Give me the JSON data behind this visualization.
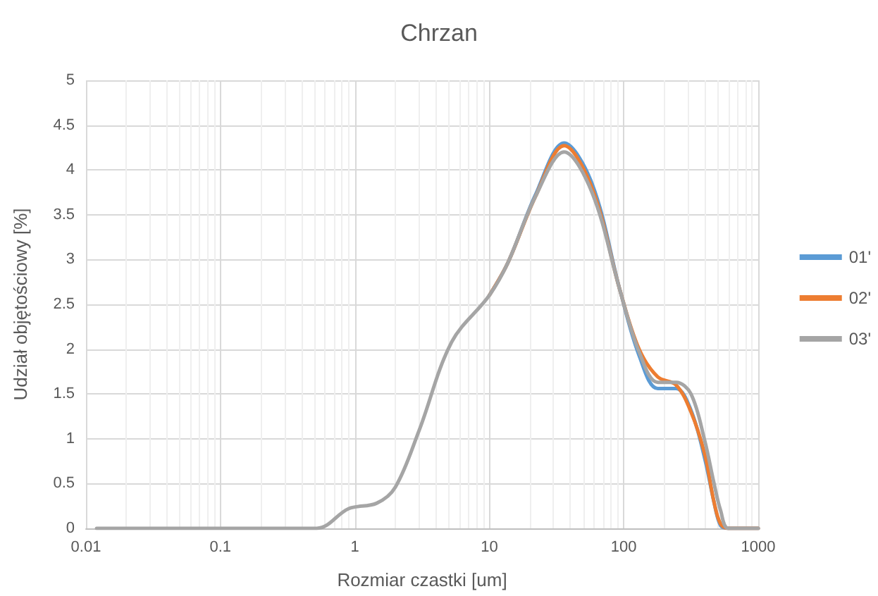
{
  "chart_data": {
    "type": "line",
    "title": "Chrzan",
    "xlabel": "Rozmiar czastki [um]",
    "ylabel": "Udział objętościowy [%]",
    "x": [
      0.012,
      0.52,
      0.9,
      1.45,
      2,
      3,
      5.25,
      10,
      13.8,
      22,
      36,
      58,
      94,
      130,
      179,
      245,
      316,
      400,
      468,
      525,
      600,
      1000
    ],
    "series": [
      {
        "name": "01'",
        "color": "#5b9bd5",
        "values": [
          null,
          null,
          null,
          null,
          null,
          null,
          null,
          2.6,
          2.97,
          3.72,
          4.3,
          3.85,
          2.65,
          1.93,
          1.56,
          1.56,
          1.32,
          0.78,
          0.3,
          0.03,
          0,
          0
        ]
      },
      {
        "name": "02'",
        "color": "#ed7d31",
        "values": [
          null,
          null,
          null,
          null,
          null,
          null,
          null,
          2.6,
          2.97,
          3.7,
          4.27,
          3.8,
          2.65,
          2.0,
          1.69,
          1.6,
          1.3,
          0.83,
          0.3,
          0.05,
          0,
          0
        ]
      },
      {
        "name": "03'",
        "color": "#a5a5a5",
        "values": [
          0,
          0,
          0.22,
          0.28,
          0.46,
          1.09,
          2.08,
          2.6,
          2.97,
          3.7,
          4.2,
          3.75,
          2.65,
          1.97,
          1.63,
          1.63,
          1.5,
          0.98,
          0.51,
          0.2,
          0,
          0
        ]
      }
    ],
    "log": "x",
    "xlim": [
      0.01,
      1000
    ],
    "xticks": [
      0.01,
      0.1,
      1,
      10,
      100,
      1000
    ],
    "ylim": [
      0,
      5
    ],
    "yticks": [
      0,
      0.5,
      1,
      1.5,
      2,
      2.5,
      3,
      3.5,
      4,
      4.5,
      5
    ],
    "grid": true,
    "legend": "right",
    "marker": "none",
    "line_style": "solid"
  }
}
